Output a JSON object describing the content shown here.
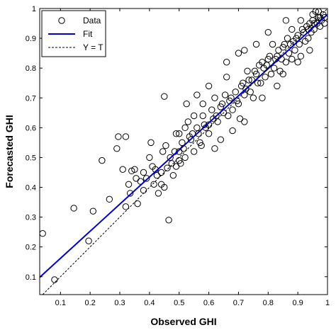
{
  "chart_data": {
    "type": "scatter",
    "title": "",
    "xlabel": "Observed GHI",
    "ylabel": "Forecasted GHI",
    "xlim": [
      0.03,
      1.0
    ],
    "ylim": [
      0.04,
      1.0
    ],
    "xticks": [
      {
        "v": 0.1,
        "t": "0.1"
      },
      {
        "v": 0.2,
        "t": "0.2"
      },
      {
        "v": 0.3,
        "t": "0.3"
      },
      {
        "v": 0.4,
        "t": "0.4"
      },
      {
        "v": 0.5,
        "t": "0.5"
      },
      {
        "v": 0.6,
        "t": "0.6"
      },
      {
        "v": 0.7,
        "t": "0.7"
      },
      {
        "v": 0.8,
        "t": "0.8"
      },
      {
        "v": 0.9,
        "t": "0.9"
      },
      {
        "v": 1.0,
        "t": "1"
      }
    ],
    "yticks": [
      {
        "v": 0.1,
        "t": "0.1"
      },
      {
        "v": 0.2,
        "t": "0.2"
      },
      {
        "v": 0.3,
        "t": "0.3"
      },
      {
        "v": 0.4,
        "t": "0.4"
      },
      {
        "v": 0.5,
        "t": "0.5"
      },
      {
        "v": 0.6,
        "t": "0.6"
      },
      {
        "v": 0.7,
        "t": "0.7"
      },
      {
        "v": 0.8,
        "t": "0.8"
      },
      {
        "v": 0.9,
        "t": "0.9"
      },
      {
        "v": 1.0,
        "t": "1"
      }
    ],
    "grid": false,
    "legend": {
      "position": "top-left",
      "entries": [
        {
          "label": "Data",
          "style": "circle"
        },
        {
          "label": "Fit",
          "style": "solid-line"
        },
        {
          "label": "Y = T",
          "style": "dashed-line"
        }
      ]
    },
    "colors": {
      "data": "#000000",
      "fit": "#0000cc",
      "identity": "#000000"
    },
    "series": [
      {
        "name": "Data",
        "points": [
          [
            0.04,
            0.245
          ],
          [
            0.08,
            0.09
          ],
          [
            0.145,
            0.33
          ],
          [
            0.195,
            0.22
          ],
          [
            0.21,
            0.32
          ],
          [
            0.24,
            0.49
          ],
          [
            0.265,
            0.36
          ],
          [
            0.29,
            0.53
          ],
          [
            0.295,
            0.57
          ],
          [
            0.32,
            0.57
          ],
          [
            0.31,
            0.46
          ],
          [
            0.32,
            0.335
          ],
          [
            0.33,
            0.41
          ],
          [
            0.335,
            0.38
          ],
          [
            0.34,
            0.455
          ],
          [
            0.35,
            0.46
          ],
          [
            0.355,
            0.43
          ],
          [
            0.37,
            0.42
          ],
          [
            0.38,
            0.45
          ],
          [
            0.39,
            0.43
          ],
          [
            0.4,
            0.5
          ],
          [
            0.405,
            0.55
          ],
          [
            0.41,
            0.47
          ],
          [
            0.42,
            0.46
          ],
          [
            0.43,
            0.38
          ],
          [
            0.44,
            0.45
          ],
          [
            0.445,
            0.52
          ],
          [
            0.45,
            0.705
          ],
          [
            0.455,
            0.54
          ],
          [
            0.46,
            0.465
          ],
          [
            0.465,
            0.29
          ],
          [
            0.47,
            0.5
          ],
          [
            0.48,
            0.44
          ],
          [
            0.49,
            0.47
          ],
          [
            0.49,
            0.58
          ],
          [
            0.5,
            0.52
          ],
          [
            0.505,
            0.48
          ],
          [
            0.51,
            0.55
          ],
          [
            0.52,
            0.5
          ],
          [
            0.525,
            0.68
          ],
          [
            0.53,
            0.62
          ],
          [
            0.54,
            0.56
          ],
          [
            0.55,
            0.52
          ],
          [
            0.56,
            0.6
          ],
          [
            0.57,
            0.55
          ],
          [
            0.575,
            0.54
          ],
          [
            0.58,
            0.64
          ],
          [
            0.59,
            0.6
          ],
          [
            0.6,
            0.58
          ],
          [
            0.61,
            0.66
          ],
          [
            0.615,
            0.63
          ],
          [
            0.62,
            0.7
          ],
          [
            0.63,
            0.62
          ],
          [
            0.64,
            0.67
          ],
          [
            0.65,
            0.65
          ],
          [
            0.66,
            0.77
          ],
          [
            0.665,
            0.64
          ],
          [
            0.67,
            0.69
          ],
          [
            0.68,
            0.66
          ],
          [
            0.69,
            0.72
          ],
          [
            0.7,
            0.68
          ],
          [
            0.705,
            0.63
          ],
          [
            0.71,
            0.74
          ],
          [
            0.72,
            0.71
          ],
          [
            0.73,
            0.79
          ],
          [
            0.74,
            0.72
          ],
          [
            0.745,
            0.76
          ],
          [
            0.75,
            0.7
          ],
          [
            0.76,
            0.78
          ],
          [
            0.77,
            0.81
          ],
          [
            0.775,
            0.75
          ],
          [
            0.78,
            0.82
          ],
          [
            0.79,
            0.77
          ],
          [
            0.8,
            0.83
          ],
          [
            0.81,
            0.78
          ],
          [
            0.815,
            0.88
          ],
          [
            0.82,
            0.8
          ],
          [
            0.83,
            0.84
          ],
          [
            0.84,
            0.79
          ],
          [
            0.85,
            0.87
          ],
          [
            0.86,
            0.82
          ],
          [
            0.865,
            0.9
          ],
          [
            0.87,
            0.85
          ],
          [
            0.88,
            0.83
          ],
          [
            0.885,
            0.89
          ],
          [
            0.89,
            0.86
          ],
          [
            0.9,
            0.91
          ],
          [
            0.905,
            0.88
          ],
          [
            0.91,
            0.84
          ],
          [
            0.92,
            0.92
          ],
          [
            0.925,
            0.89
          ],
          [
            0.93,
            0.94
          ],
          [
            0.935,
            0.9
          ],
          [
            0.94,
            0.95
          ],
          [
            0.945,
            0.92
          ],
          [
            0.95,
            0.96
          ],
          [
            0.955,
            0.93
          ],
          [
            0.96,
            0.99
          ],
          [
            0.965,
            0.95
          ],
          [
            0.97,
            0.97
          ],
          [
            0.975,
            0.94
          ],
          [
            0.98,
            0.96
          ],
          [
            0.985,
            0.98
          ],
          [
            0.99,
            0.97
          ],
          [
            0.36,
            0.345
          ],
          [
            0.38,
            0.39
          ],
          [
            0.415,
            0.41
          ],
          [
            0.425,
            0.44
          ],
          [
            0.475,
            0.48
          ],
          [
            0.485,
            0.52
          ],
          [
            0.5,
            0.49
          ],
          [
            0.515,
            0.53
          ],
          [
            0.535,
            0.57
          ],
          [
            0.545,
            0.58
          ],
          [
            0.565,
            0.58
          ],
          [
            0.585,
            0.61
          ],
          [
            0.6,
            0.61
          ],
          [
            0.625,
            0.64
          ],
          [
            0.645,
            0.68
          ],
          [
            0.655,
            0.71
          ],
          [
            0.675,
            0.7
          ],
          [
            0.695,
            0.69
          ],
          [
            0.715,
            0.75
          ],
          [
            0.725,
            0.73
          ],
          [
            0.735,
            0.76
          ],
          [
            0.755,
            0.79
          ],
          [
            0.765,
            0.75
          ],
          [
            0.785,
            0.8
          ],
          [
            0.795,
            0.81
          ],
          [
            0.805,
            0.84
          ],
          [
            0.825,
            0.83
          ],
          [
            0.835,
            0.86
          ],
          [
            0.845,
            0.83
          ],
          [
            0.855,
            0.88
          ],
          [
            0.875,
            0.88
          ],
          [
            0.895,
            0.9
          ],
          [
            0.915,
            0.93
          ],
          [
            0.935,
            0.93
          ],
          [
            0.955,
            0.95
          ],
          [
            0.975,
            0.97
          ],
          [
            0.6,
            0.74
          ],
          [
            0.66,
            0.82
          ],
          [
            0.7,
            0.85
          ],
          [
            0.72,
            0.62
          ],
          [
            0.62,
            0.53
          ],
          [
            0.56,
            0.71
          ],
          [
            0.58,
            0.68
          ],
          [
            0.76,
            0.88
          ],
          [
            0.8,
            0.92
          ],
          [
            0.86,
            0.96
          ],
          [
            0.88,
            0.93
          ],
          [
            0.72,
            0.86
          ],
          [
            0.9,
            0.82
          ],
          [
            0.94,
            0.86
          ],
          [
            0.68,
            0.59
          ],
          [
            0.64,
            0.56
          ],
          [
            0.5,
            0.58
          ],
          [
            0.44,
            0.41
          ],
          [
            0.52,
            0.6
          ],
          [
            0.55,
            0.64
          ],
          [
            0.45,
            0.4
          ],
          [
            0.83,
            0.74
          ],
          [
            0.78,
            0.7
          ],
          [
            0.85,
            0.78
          ],
          [
            0.95,
            0.98
          ],
          [
            0.91,
            0.96
          ],
          [
            0.97,
            0.99
          ],
          [
            0.99,
            0.95
          ]
        ]
      },
      {
        "name": "Fit",
        "line": [
          [
            0.03,
            0.098
          ],
          [
            1.0,
            0.98
          ]
        ]
      },
      {
        "name": "Y = T",
        "line": [
          [
            0.04,
            0.04
          ],
          [
            1.0,
            1.0
          ]
        ]
      }
    ]
  }
}
